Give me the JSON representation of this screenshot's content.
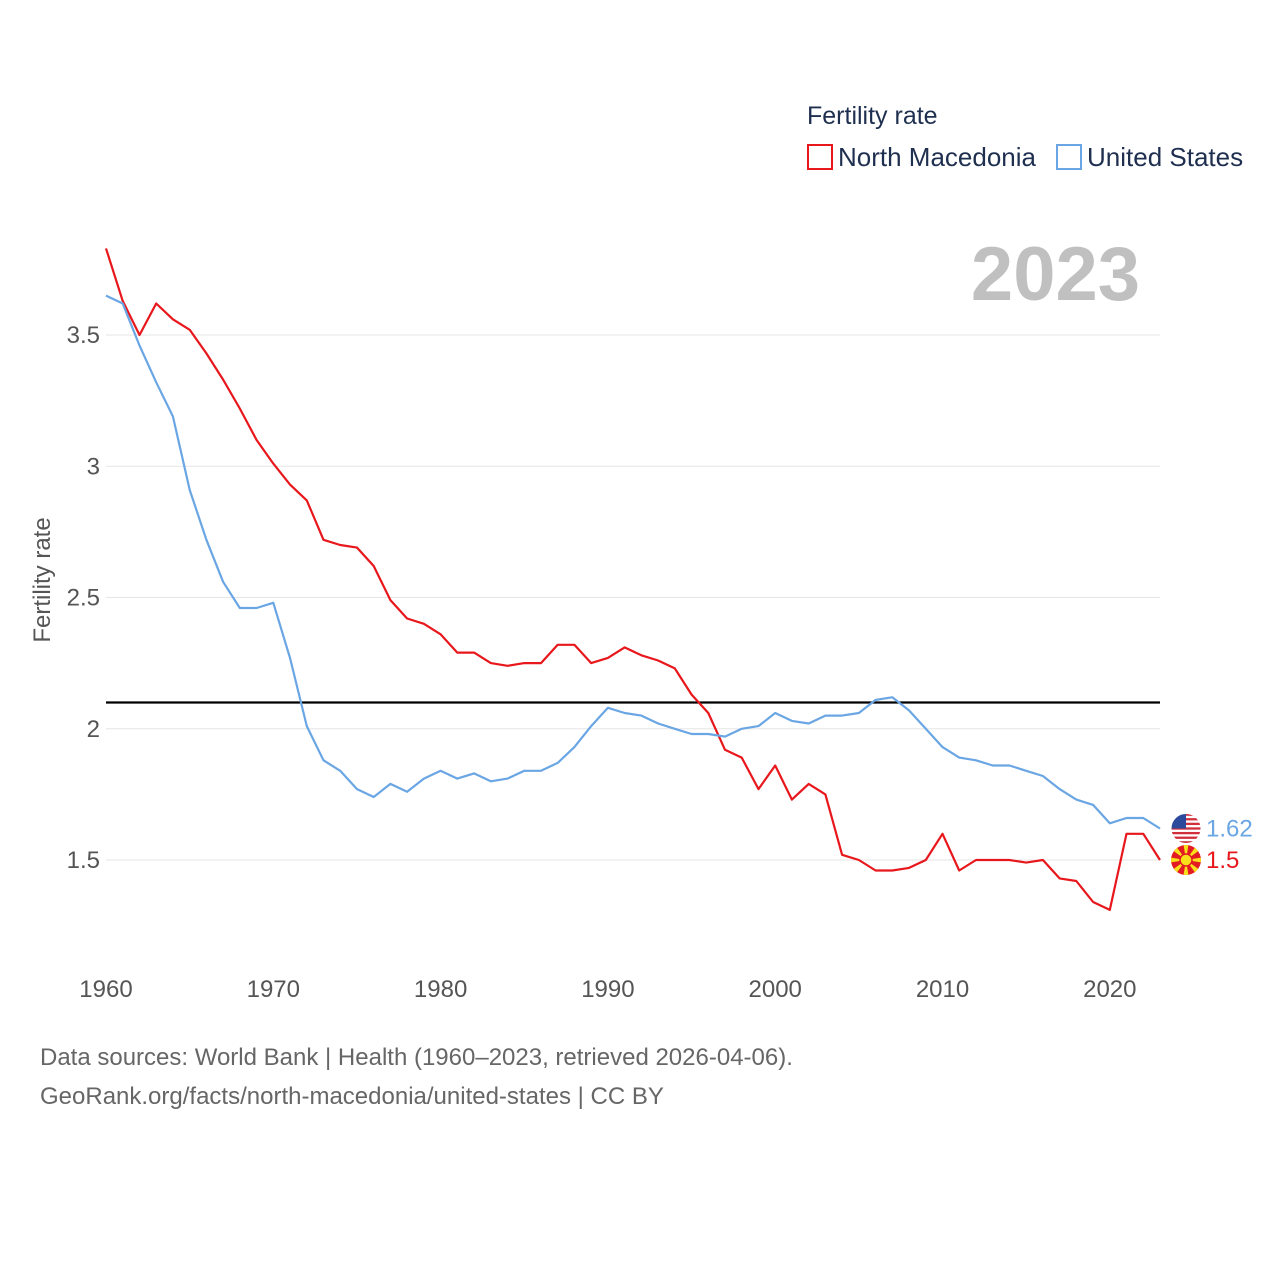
{
  "chart_data": {
    "type": "line",
    "year_label": "2023",
    "ylabel": "Fertility rate",
    "legend": {
      "title": "Fertility rate",
      "placement": "top-right"
    },
    "xlim": [
      1960,
      2023
    ],
    "ylim": [
      1.1,
      3.9
    ],
    "x_ticks": [
      1960,
      1970,
      1980,
      1990,
      2000,
      2010,
      2020
    ],
    "y_ticks": [
      1.5,
      2,
      2.5,
      3,
      3.5
    ],
    "y_tick_labels": [
      "1.5",
      "2",
      "2.5",
      "3",
      "3.5"
    ],
    "reference_line": 2.1,
    "x": [
      1960,
      1961,
      1962,
      1963,
      1964,
      1965,
      1966,
      1967,
      1968,
      1969,
      1970,
      1971,
      1972,
      1973,
      1974,
      1975,
      1976,
      1977,
      1978,
      1979,
      1980,
      1981,
      1982,
      1983,
      1984,
      1985,
      1986,
      1987,
      1988,
      1989,
      1990,
      1991,
      1992,
      1993,
      1994,
      1995,
      1996,
      1997,
      1998,
      1999,
      2000,
      2001,
      2002,
      2003,
      2004,
      2005,
      2006,
      2007,
      2008,
      2009,
      2010,
      2011,
      2012,
      2013,
      2014,
      2015,
      2016,
      2017,
      2018,
      2019,
      2020,
      2021,
      2022,
      2023
    ],
    "series": [
      {
        "name": "North Macedonia",
        "color": "#e8171c",
        "end_label": "1.5",
        "values": [
          3.83,
          3.63,
          3.5,
          3.62,
          3.56,
          3.52,
          3.43,
          3.33,
          3.22,
          3.1,
          3.01,
          2.93,
          2.87,
          2.72,
          2.7,
          2.69,
          2.62,
          2.49,
          2.42,
          2.4,
          2.36,
          2.29,
          2.29,
          2.25,
          2.24,
          2.25,
          2.25,
          2.32,
          2.32,
          2.25,
          2.27,
          2.31,
          2.28,
          2.26,
          2.23,
          2.13,
          2.06,
          1.92,
          1.89,
          1.77,
          1.86,
          1.73,
          1.79,
          1.75,
          1.52,
          1.5,
          1.46,
          1.46,
          1.47,
          1.5,
          1.6,
          1.46,
          1.5,
          1.5,
          1.5,
          1.49,
          1.5,
          1.43,
          1.42,
          1.34,
          1.31,
          1.6,
          1.6,
          1.5
        ]
      },
      {
        "name": "United States",
        "color": "#6aa6e4",
        "end_label": "1.62",
        "values": [
          3.65,
          3.62,
          3.46,
          3.32,
          3.19,
          2.91,
          2.72,
          2.56,
          2.46,
          2.46,
          2.48,
          2.27,
          2.01,
          1.88,
          1.84,
          1.77,
          1.74,
          1.79,
          1.76,
          1.81,
          1.84,
          1.81,
          1.83,
          1.8,
          1.81,
          1.84,
          1.84,
          1.87,
          1.93,
          2.01,
          2.08,
          2.06,
          2.05,
          2.02,
          2.0,
          1.98,
          1.98,
          1.97,
          2.0,
          2.01,
          2.06,
          2.03,
          2.02,
          2.05,
          2.05,
          2.06,
          2.11,
          2.12,
          2.07,
          2.0,
          1.93,
          1.89,
          1.88,
          1.86,
          1.86,
          1.84,
          1.82,
          1.77,
          1.73,
          1.71,
          1.64,
          1.66,
          1.66,
          1.62
        ]
      }
    ]
  },
  "footer": {
    "line1": "Data sources: World Bank | Health (1960–2023, retrieved 2026-04-06).",
    "line2": "GeoRank.org/facts/north-macedonia/united-states | CC BY"
  }
}
